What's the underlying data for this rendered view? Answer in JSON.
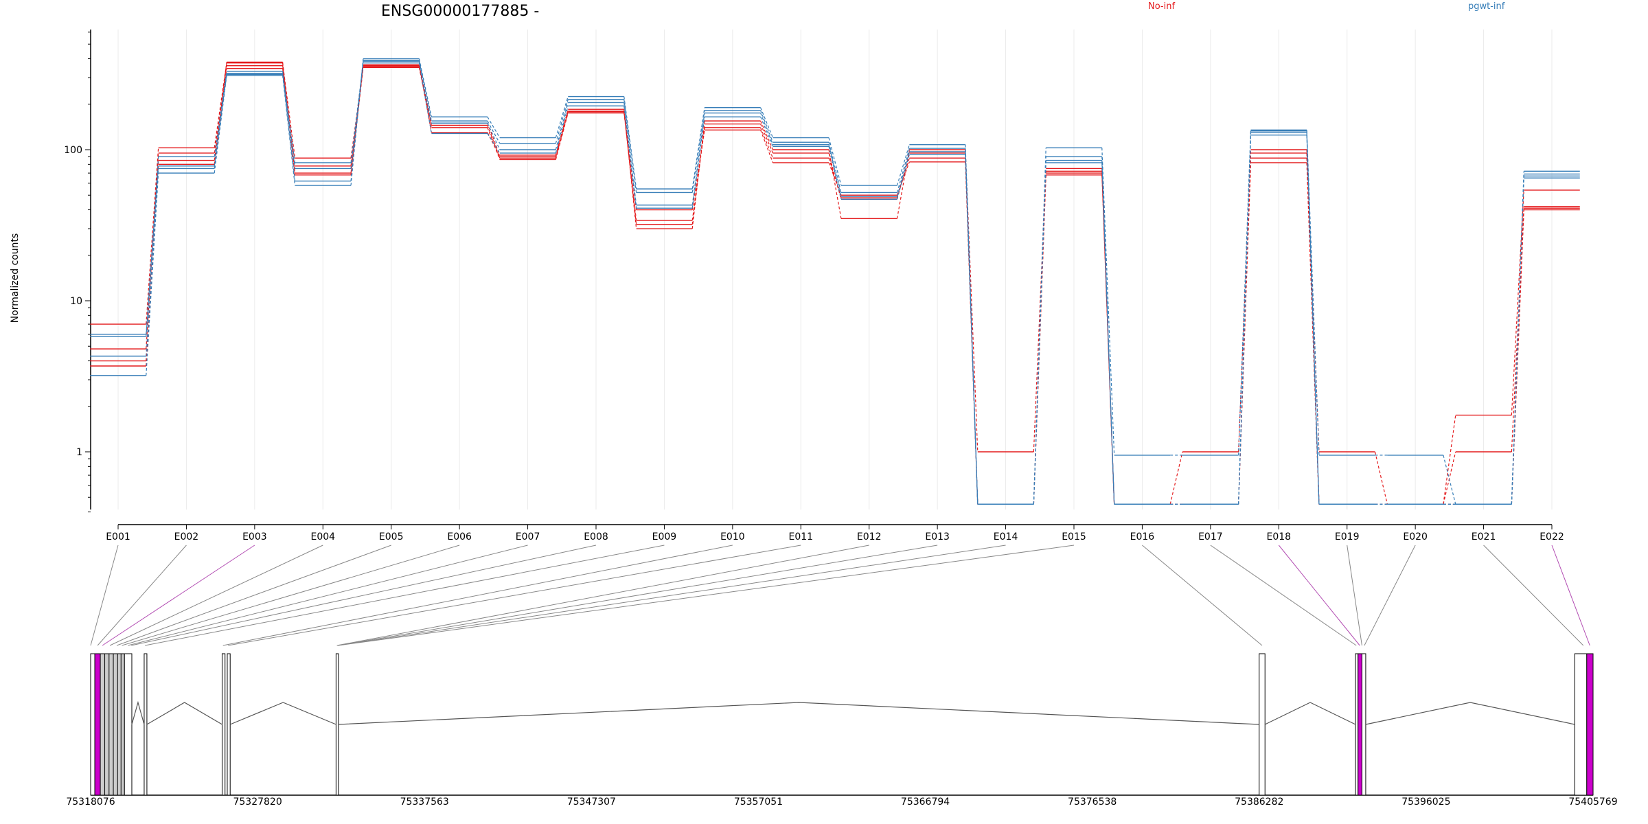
{
  "chart_data": {
    "type": "line",
    "title": "ENSG00000177885 -",
    "ylabel": "Normalized counts",
    "xlabel": "",
    "yscale": "log",
    "ylim": [
      0.4,
      600
    ],
    "yticks": [
      "1",
      "10",
      "100"
    ],
    "grid": "vertical-only",
    "categories": [
      "E001",
      "E002",
      "E003",
      "E004",
      "E005",
      "E006",
      "E007",
      "E008",
      "E009",
      "E010",
      "E011",
      "E012",
      "E013",
      "E014",
      "E015",
      "E016",
      "E017",
      "E018",
      "E019",
      "E020",
      "E021",
      "E022"
    ],
    "legend": [
      {
        "label": "No-inf",
        "color": "#e41a1c"
      },
      {
        "label": "pgwt-inf",
        "color": "#377eb8"
      }
    ],
    "series": [
      {
        "group": "No-inf",
        "color": "#e41a1c",
        "values": [
          7.0,
          103,
          375,
          88,
          355,
          150,
          92,
          185,
          30,
          155,
          100,
          35,
          100,
          1.0,
          75,
          0.45,
          1.0,
          100,
          1.0,
          0.45,
          1.75,
          54
        ]
      },
      {
        "group": "No-inf",
        "color": "#e41a1c",
        "values": [
          4.8,
          95,
          360,
          78,
          360,
          145,
          88,
          180,
          32,
          148,
          95,
          47,
          95,
          0.45,
          70,
          0.45,
          0.45,
          95,
          0.45,
          0.45,
          1.0,
          42
        ]
      },
      {
        "group": "No-inf",
        "color": "#e41a1c",
        "values": [
          4.0,
          85,
          345,
          70,
          350,
          140,
          86,
          175,
          34,
          140,
          88,
          48,
          88,
          0.45,
          72,
          0.45,
          0.45,
          88,
          0.45,
          0.45,
          0.45,
          41
        ]
      },
      {
        "group": "No-inf",
        "color": "#e41a1c",
        "values": [
          3.7,
          80,
          380,
          68,
          365,
          130,
          90,
          178,
          40,
          135,
          82,
          50,
          83,
          0.45,
          68,
          0.45,
          0.45,
          82,
          0.45,
          0.45,
          0.45,
          40
        ]
      },
      {
        "group": "pgwt-inf",
        "color": "#377eb8",
        "values": [
          3.2,
          70,
          310,
          58,
          400,
          165,
          120,
          225,
          55,
          190,
          120,
          58,
          108,
          0.45,
          103,
          0.95,
          0.95,
          135,
          0.95,
          0.95,
          0.45,
          72
        ]
      },
      {
        "group": "pgwt-inf",
        "color": "#377eb8",
        "values": [
          4.3,
          75,
          320,
          62,
          390,
          155,
          110,
          215,
          52,
          182,
          112,
          52,
          102,
          0.45,
          90,
          0.45,
          0.45,
          130,
          0.45,
          0.45,
          0.45,
          69
        ]
      },
      {
        "group": "pgwt-inf",
        "color": "#377eb8",
        "values": [
          5.8,
          90,
          330,
          75,
          385,
          150,
          100,
          205,
          43,
          175,
          108,
          49,
          97,
          0.45,
          85,
          0.45,
          0.45,
          125,
          0.45,
          0.45,
          0.45,
          67
        ]
      },
      {
        "group": "pgwt-inf",
        "color": "#377eb8",
        "values": [
          6.0,
          78,
          315,
          82,
          375,
          128,
          95,
          195,
          41,
          165,
          105,
          47,
          93,
          0.45,
          82,
          0.45,
          0.45,
          133,
          0.45,
          0.45,
          0.45,
          65
        ]
      }
    ],
    "gene_model": {
      "axis_ticks": [
        "75318076",
        "75327820",
        "75337563",
        "75347307",
        "75357051",
        "75366794",
        "75376538",
        "75386282",
        "75396025",
        "75405769"
      ],
      "range": [
        75318076,
        75405769
      ],
      "highlighted_exons": [
        "E003",
        "E018",
        "E022"
      ],
      "highlight_color": "#cc00cc",
      "line_color": "#555555",
      "exon_fill": "#ffffff",
      "gray_fill": "#cccccc",
      "connector_color": "#888888"
    }
  }
}
